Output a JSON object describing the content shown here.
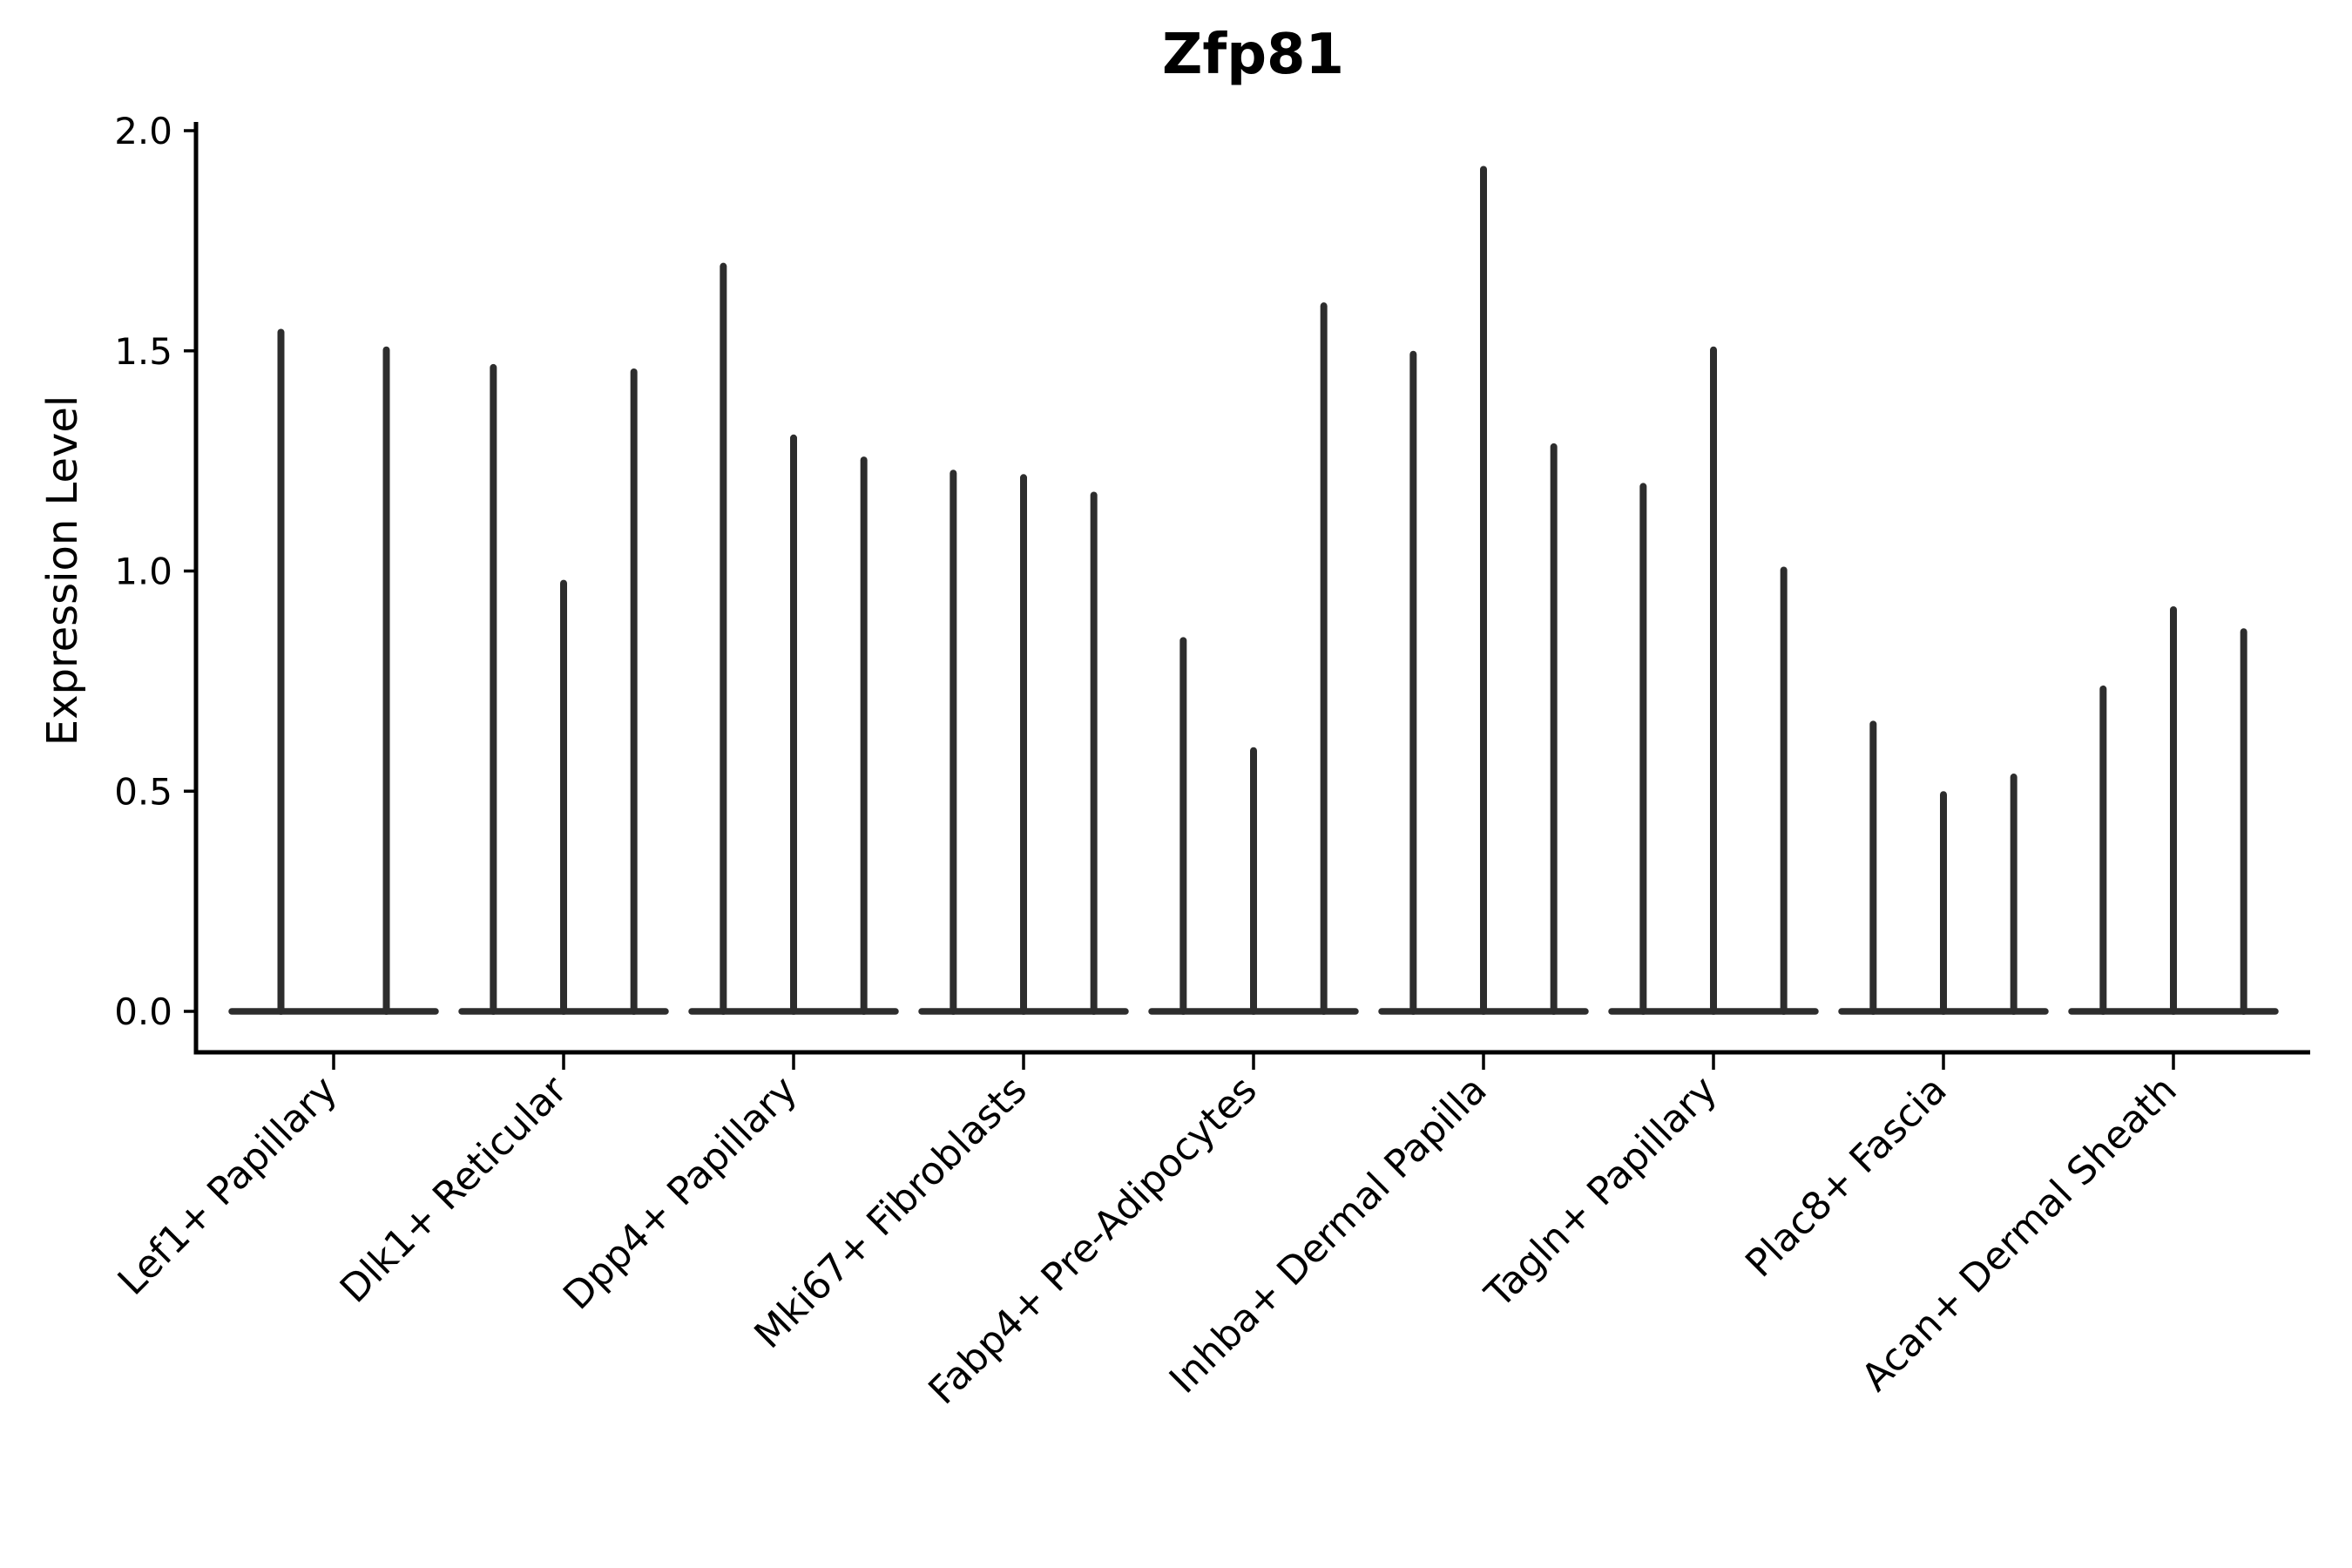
{
  "chart_data": {
    "type": "violin",
    "title": "Zfp81",
    "ylabel": "Expression Level",
    "xlabel": "",
    "ylim": [
      0.0,
      2.0
    ],
    "yticks": [
      0.0,
      0.5,
      1.0,
      1.5,
      2.0
    ],
    "ytick_labels": [
      "0.0",
      "0.5",
      "1.0",
      "1.5",
      "2.0"
    ],
    "grid": false,
    "legend": "none",
    "categories": [
      "Lef1+ Papillary",
      "Dlk1+ Reticular",
      "Dpp4+ Papillary",
      "Mki67+ Fibroblasts",
      "Fabp4+ Pre-Adipocytes",
      "Inhba+ Dermal Papilla",
      "Tagln+ Papillary",
      "Plac8+ Fascia",
      "Acan+ Dermal Sheath"
    ],
    "violins_per_category": [
      [
        1.55,
        1.51
      ],
      [
        1.47,
        0.98,
        1.46
      ],
      [
        1.7,
        1.31,
        1.26
      ],
      [
        1.23,
        1.22,
        1.18
      ],
      [
        0.85,
        0.6,
        1.61
      ],
      [
        1.5,
        1.92,
        1.29
      ],
      [
        1.2,
        1.51,
        1.01
      ],
      [
        0.66,
        0.5,
        0.54
      ],
      [
        0.74,
        0.92,
        0.87
      ]
    ],
    "shape_note": "Each violin's density mass sits at expression 0 (flat wide base) with an extremely thin tail spiking up to the listed maximum value.",
    "colors": {
      "violin": "#2d2d2d",
      "axis": "#000000",
      "text": "#000000",
      "background": "#ffffff"
    }
  }
}
